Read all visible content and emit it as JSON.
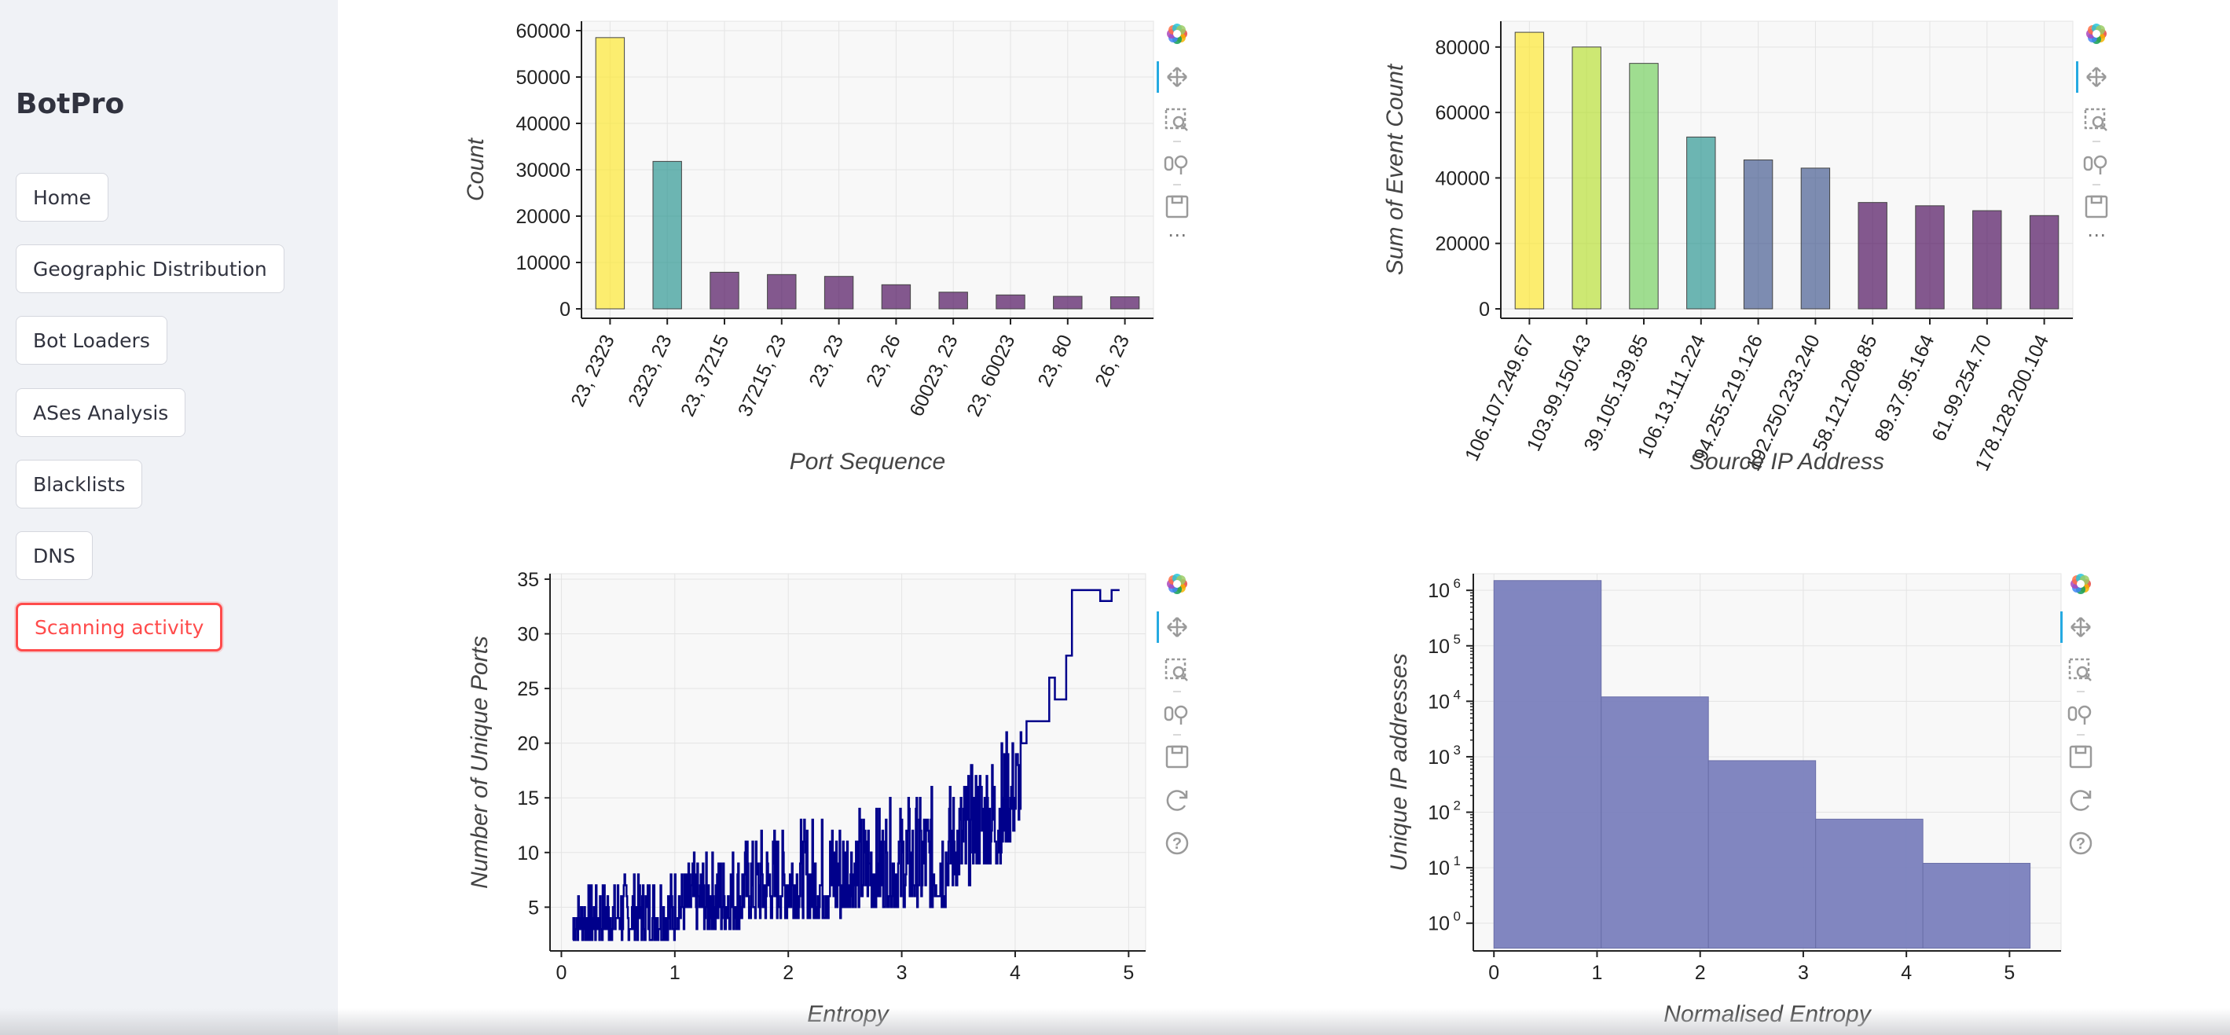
{
  "app": {
    "title": "BotPro"
  },
  "sidebar": {
    "items": [
      {
        "label": "Home"
      },
      {
        "label": "Geographic Distribution"
      },
      {
        "label": "Bot Loaders"
      },
      {
        "label": "ASes Analysis"
      },
      {
        "label": "Blacklists"
      },
      {
        "label": "DNS"
      },
      {
        "label": "Scanning activity",
        "active": true
      }
    ],
    "accent_color": "#ff4b4b"
  },
  "toolbar": {
    "tools": [
      "bokeh-logo-icon",
      "pan-icon",
      "box-zoom-icon",
      "wheel-zoom-icon",
      "save-icon",
      "reset-icon",
      "help-icon"
    ],
    "more_label": "⋯"
  },
  "charts": [
    {
      "id": "port-sequence",
      "chart_data": {
        "type": "bar",
        "xlabel": "Port Sequence",
        "ylabel": "Count",
        "categories": [
          "23, 2323",
          "2323, 23",
          "23, 37215",
          "37215, 23",
          "23, 23",
          "23, 26",
          "60023, 23",
          "23, 60023",
          "23, 80",
          "26, 23"
        ],
        "values": [
          58500,
          31800,
          7900,
          7400,
          7000,
          5200,
          3600,
          3000,
          2700,
          2600
        ],
        "bar_colors": [
          "#fde725",
          "#21918c",
          "#440154",
          "#440154",
          "#440154",
          "#440154",
          "#440154",
          "#440154",
          "#440154",
          "#440154"
        ],
        "ylim": [
          0,
          60000
        ],
        "yticks": [
          0,
          10000,
          20000,
          30000,
          40000,
          50000,
          60000
        ],
        "grid": true
      }
    },
    {
      "id": "source-ip",
      "chart_data": {
        "type": "bar",
        "xlabel": "Source IP Address",
        "ylabel": "Sum of Event Count",
        "categories": [
          "106.107.249.67",
          "103.99.150.43",
          "39.105.139.85",
          "106.13.111.224",
          "94.255.219.126",
          "192.250.233.240",
          "58.121.208.85",
          "89.37.95.164",
          "61.99.254.70",
          "178.128.200.104"
        ],
        "values": [
          84500,
          80000,
          75000,
          52500,
          45500,
          43000,
          32500,
          31500,
          30000,
          28500
        ],
        "bar_colors": [
          "#fde725",
          "#b5de2b",
          "#6ece58",
          "#21918c",
          "#3b528b",
          "#3b528b",
          "#440154",
          "#440154",
          "#440154",
          "#440154"
        ],
        "ylim": [
          0,
          85000
        ],
        "yticks": [
          0,
          20000,
          40000,
          60000,
          80000
        ],
        "grid": true
      }
    },
    {
      "id": "entropy-ports",
      "chart_data": {
        "type": "line",
        "xlabel": "Entropy",
        "ylabel": "Number of Unique Ports",
        "xlim": [
          -0.1,
          5.15
        ],
        "ylim": [
          1,
          35.5
        ],
        "xticks": [
          0,
          1,
          2,
          3,
          4,
          5
        ],
        "yticks": [
          5,
          10,
          15,
          20,
          25,
          30,
          35
        ],
        "line_color": "#00008b",
        "step_points": [
          [
            0.1,
            2
          ],
          [
            1.0,
            2
          ],
          [
            1.0,
            3
          ],
          [
            1.6,
            3
          ],
          [
            1.6,
            4
          ],
          [
            2.5,
            4
          ],
          [
            2.5,
            5
          ],
          [
            3.2,
            5
          ],
          [
            3.4,
            7
          ],
          [
            3.6,
            9
          ],
          [
            3.9,
            11
          ],
          [
            4.0,
            13
          ],
          [
            4.05,
            20
          ],
          [
            4.1,
            20
          ],
          [
            4.1,
            22
          ],
          [
            4.3,
            22
          ],
          [
            4.3,
            26
          ],
          [
            4.35,
            26
          ],
          [
            4.35,
            24
          ],
          [
            4.45,
            24
          ],
          [
            4.45,
            28
          ],
          [
            4.5,
            28
          ],
          [
            4.5,
            34
          ],
          [
            4.75,
            34
          ],
          [
            4.75,
            33
          ],
          [
            4.85,
            33
          ],
          [
            4.85,
            34
          ],
          [
            4.92,
            34
          ]
        ],
        "noise_envelope": [
          [
            0.1,
            7
          ],
          [
            0.5,
            8
          ],
          [
            1.0,
            9
          ],
          [
            1.5,
            11
          ],
          [
            2.0,
            13
          ],
          [
            2.5,
            14
          ],
          [
            3.0,
            15
          ],
          [
            3.5,
            17
          ],
          [
            3.9,
            21
          ],
          [
            4.05,
            22
          ]
        ],
        "grid": true
      }
    },
    {
      "id": "normalised-entropy",
      "chart_data": {
        "type": "bar",
        "xlabel": "Normalised Entropy",
        "ylabel": "Unique IP addresses",
        "y_scale": "log",
        "xlim": [
          -0.2,
          5.5
        ],
        "ylim_log10": [
          -0.5,
          6.3
        ],
        "xticks": [
          0,
          1,
          2,
          3,
          4,
          5
        ],
        "ytick_base": "10",
        "ytick_exponents": [
          "0",
          "1",
          "2",
          "3",
          "4",
          "5",
          "6"
        ],
        "bins": [
          [
            0,
            1.04
          ],
          [
            1.04,
            2.08
          ],
          [
            2.08,
            3.12
          ],
          [
            3.12,
            4.16
          ],
          [
            4.16,
            5.2
          ]
        ],
        "values": [
          1500000,
          12000,
          850,
          75,
          12
        ],
        "fill_color": "#7a7fbd",
        "grid": true
      }
    }
  ]
}
